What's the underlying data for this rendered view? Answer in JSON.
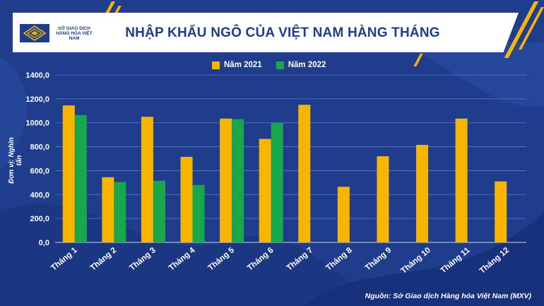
{
  "header": {
    "title": "NHẬP KHẨU NGÔ CỦA VIỆT NAM HÀNG THÁNG",
    "logo_text": "SỞ GIAO DỊCH HÀNG HÓA VIỆT NAM"
  },
  "footer": {
    "source": "Nguồn: Sở Giao dịch Hàng hóa Việt Nam (MXV)"
  },
  "colors": {
    "background": "#1f3d8c",
    "series_2021": "#f7b500",
    "series_2022": "#1aa64a",
    "accent": "#f7b500"
  },
  "chart_data": {
    "type": "bar",
    "title": "NHẬP KHẨU NGÔ CỦA VIỆT NAM HÀNG THÁNG",
    "ylabel": "Đơn vị: Nghìn tấn",
    "xlabel": "",
    "ylim": [
      0,
      1400
    ],
    "yticks": [
      "0,0",
      "200,0",
      "400,0",
      "600,0",
      "800,0",
      "1000,0",
      "1200,0",
      "1400,0"
    ],
    "grid": true,
    "legend_position": "top",
    "categories": [
      "Tháng 1",
      "Tháng 2",
      "Tháng 3",
      "Tháng 4",
      "Tháng 5",
      "Tháng 6",
      "Tháng 7",
      "Tháng 8",
      "Tháng 9",
      "Tháng 10",
      "Tháng 11",
      "Tháng 12"
    ],
    "series": [
      {
        "name": "Năm 2021",
        "values": [
          1145,
          545,
          1050,
          715,
          1035,
          865,
          1150,
          465,
          720,
          815,
          1035,
          510
        ]
      },
      {
        "name": "Năm 2022",
        "values": [
          1065,
          505,
          515,
          480,
          1030,
          1000,
          null,
          null,
          null,
          null,
          null,
          null
        ]
      }
    ]
  }
}
